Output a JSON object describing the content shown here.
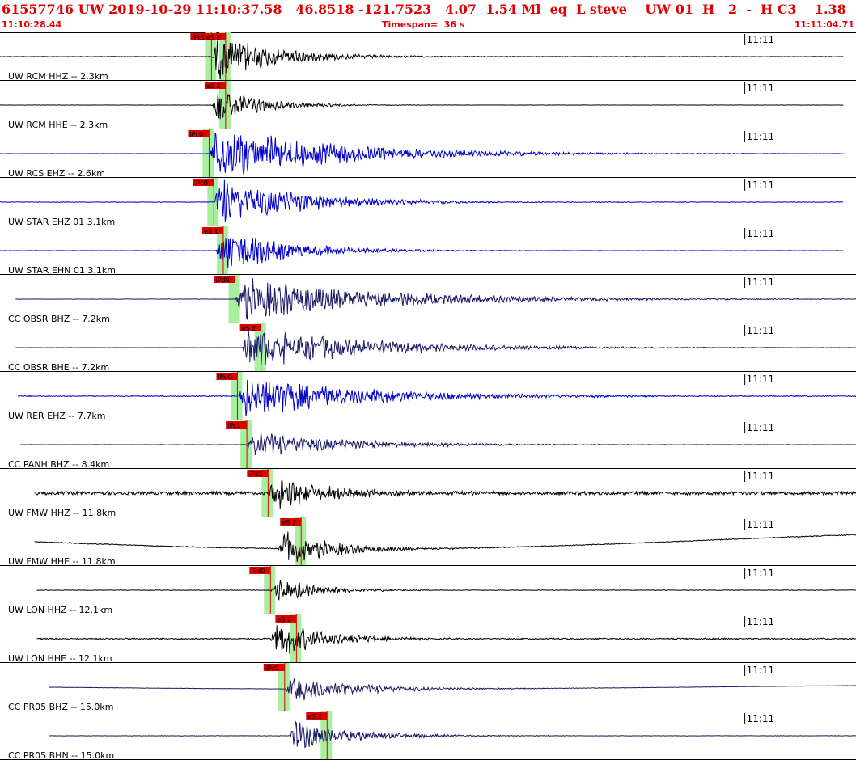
{
  "header": {
    "event_title": "61557746 UW 2019-10-29 11:10:37.58   46.8518 -121.7523   4.07  1.54 Ml  eq  L steve    UW 01  H   2  -  H C3    1.38  2.69",
    "start_time": "11:10:28.44",
    "timespan": "Timespan=  36 s",
    "end_time": "11:11:04.71"
  },
  "colors": {
    "header_text": "#e00000",
    "pick_box": "#e00000",
    "pick_window": "#a8f0a0",
    "wave_black": "#000000",
    "wave_blue": "#0000cc",
    "wave_navy": "#1a1a66"
  },
  "chart_data": {
    "type": "line",
    "x_unit": "s",
    "xlim": [
      28.44,
      64.71
    ],
    "minute_tick": {
      "label": "11:11",
      "time": 60.0
    },
    "traces": [
      {
        "label": "UW RCM HHZ -- 2.3km",
        "color": "black",
        "picks": [
          {
            "label": "iPc1",
            "time": 37.4
          },
          {
            "label": "eS 2",
            "time": 38.0
          }
        ],
        "onset": 37.4,
        "data_start": 28.44,
        "data_end": 64.2,
        "amp": 26,
        "decay": 2.5,
        "noise": 0.5,
        "drift": 0
      },
      {
        "label": "UW RCM HHE -- 2.3km",
        "color": "black",
        "picks": [
          {
            "label": "eS 2",
            "time": 38.0
          }
        ],
        "onset": 37.4,
        "data_start": 28.44,
        "data_end": 64.2,
        "amp": 22,
        "decay": 1.8,
        "noise": 0.3,
        "drift": 0
      },
      {
        "label": "UW RCS EHZ -- 2.6km",
        "color": "blue",
        "picks": [
          {
            "label": "iPc0",
            "time": 37.3
          }
        ],
        "onset": 37.3,
        "data_start": 28.44,
        "data_end": 64.2,
        "amp": 28,
        "decay": 5,
        "noise": 0.3,
        "drift": 0
      },
      {
        "label": "UW STAR EHZ 01 3.1km",
        "color": "blue",
        "picks": [
          {
            "label": "iPc0",
            "time": 37.5
          }
        ],
        "onset": 37.5,
        "data_start": 28.44,
        "data_end": 64.2,
        "amp": 26,
        "decay": 3.5,
        "noise": 0.6,
        "drift": 0
      },
      {
        "label": "UW STAR EHN 01 3.1km",
        "color": "blue",
        "picks": [
          {
            "label": "eS 1",
            "time": 37.9
          }
        ],
        "onset": 37.6,
        "data_start": 28.44,
        "data_end": 64.2,
        "amp": 24,
        "decay": 2.8,
        "noise": 0.4,
        "drift": 0
      },
      {
        "label": "CC OBSR BHZ -- 7.2km",
        "color": "navy",
        "picks": [
          {
            "label": "iPd0",
            "time": 38.4
          }
        ],
        "onset": 38.4,
        "data_start": 29.1,
        "data_end": 64.9,
        "amp": 22,
        "decay": 6,
        "noise": 0.4,
        "drift": 0
      },
      {
        "label": "CC OBSR BHE -- 7.2km",
        "color": "navy",
        "picks": [
          {
            "label": "eS 2",
            "time": 39.5
          }
        ],
        "onset": 38.7,
        "data_start": 29.1,
        "data_end": 64.9,
        "amp": 22,
        "decay": 5,
        "noise": 0.3,
        "drift": 0
      },
      {
        "label": "UW RER EHZ -- 7.7km",
        "color": "blue",
        "picks": [
          {
            "label": "iPd0",
            "time": 38.5
          }
        ],
        "onset": 38.5,
        "data_start": 29.2,
        "data_end": 65.0,
        "amp": 22,
        "decay": 5,
        "noise": 1.0,
        "drift": 0
      },
      {
        "label": "CC PANH BHZ -- 8.4km",
        "color": "navy",
        "picks": [
          {
            "label": "iPc1",
            "time": 38.9
          }
        ],
        "onset": 38.9,
        "data_start": 29.3,
        "data_end": 65.1,
        "amp": 14,
        "decay": 4,
        "noise": 0.4,
        "drift": 0
      },
      {
        "label": "UW FMW HHZ -- 11.8km",
        "color": "black",
        "picks": [
          {
            "label": "iPd1",
            "time": 39.8
          }
        ],
        "onset": 39.8,
        "data_start": 29.9,
        "data_end": 65.7,
        "amp": 18,
        "decay": 2.5,
        "noise": 4,
        "drift": 0
      },
      {
        "label": "UW FMW HHE -- 11.8km",
        "color": "black",
        "picks": [
          {
            "label": "eS 2",
            "time": 41.2
          }
        ],
        "onset": 40.2,
        "data_start": 29.9,
        "data_end": 65.7,
        "amp": 20,
        "decay": 2.2,
        "noise": 1.0,
        "drift": 20
      },
      {
        "label": "UW LON HHZ -- 12.1km",
        "color": "black",
        "picks": [
          {
            "label": "iPd0",
            "time": 39.9
          }
        ],
        "onset": 39.9,
        "data_start": 30.0,
        "data_end": 65.8,
        "amp": 14,
        "decay": 1.8,
        "noise": 0.6,
        "drift": 0
      },
      {
        "label": "UW LON HHE -- 12.1km",
        "color": "black",
        "picks": [
          {
            "label": "eS 2",
            "time": 41.0
          }
        ],
        "onset": 39.9,
        "data_start": 30.0,
        "data_end": 65.8,
        "amp": 22,
        "decay": 2,
        "noise": 1.5,
        "drift": 0
      },
      {
        "label": "CC PR05 BHZ -- 15.0km",
        "color": "navy",
        "picks": [
          {
            "label": "iPc0",
            "time": 40.5
          }
        ],
        "onset": 40.5,
        "data_start": 30.5,
        "data_end": 66.3,
        "amp": 14,
        "decay": 3,
        "noise": 0.4,
        "drift": 5
      },
      {
        "label": "CC PR05 BHN -- 15.0km",
        "color": "navy",
        "picks": [
          {
            "label": "eS 2",
            "time": 42.3
          }
        ],
        "onset": 40.7,
        "data_start": 30.5,
        "data_end": 66.3,
        "amp": 16,
        "decay": 2.5,
        "noise": 0.4,
        "drift": 0
      }
    ]
  }
}
